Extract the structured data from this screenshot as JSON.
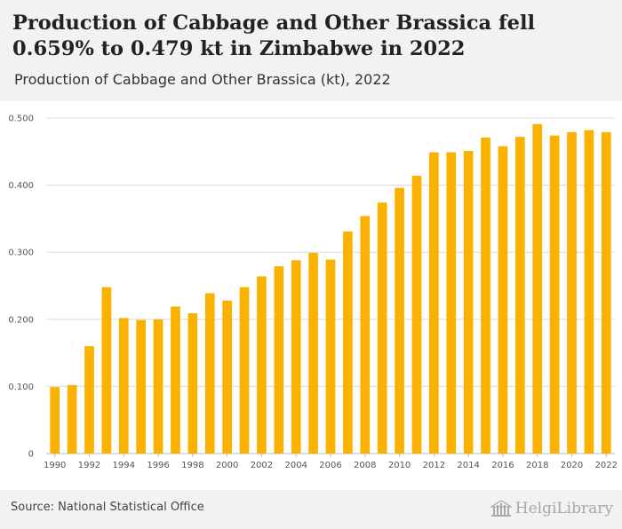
{
  "header": {
    "title": "Production of Cabbage and Other Brassica fell 0.659% to 0.479 kt in Zimbabwe in 2022",
    "subtitle": "Production of Cabbage and Other Brassica (kt), 2022"
  },
  "footer": {
    "source": "Source: National Statistical Office",
    "logo_text": "HelgiLibrary"
  },
  "colors": {
    "bar": "#fbb100",
    "grid": "#d9d9d9",
    "axis_text": "#555555"
  },
  "chart_data": {
    "type": "bar",
    "categories": [
      "1990",
      "1991",
      "1992",
      "1993",
      "1994",
      "1995",
      "1996",
      "1997",
      "1998",
      "1999",
      "2000",
      "2001",
      "2002",
      "2003",
      "2004",
      "2005",
      "2006",
      "2007",
      "2008",
      "2009",
      "2010",
      "2011",
      "2012",
      "2013",
      "2014",
      "2015",
      "2016",
      "2017",
      "2018",
      "2019",
      "2020",
      "2021",
      "2022"
    ],
    "values": [
      0.099,
      0.102,
      0.16,
      0.248,
      0.202,
      0.199,
      0.2,
      0.219,
      0.209,
      0.239,
      0.228,
      0.248,
      0.264,
      0.279,
      0.288,
      0.299,
      0.289,
      0.331,
      0.354,
      0.374,
      0.396,
      0.414,
      0.449,
      0.449,
      0.451,
      0.471,
      0.458,
      0.472,
      0.491,
      0.474,
      0.479,
      0.482,
      0.479
    ],
    "x_tick_labels": [
      "1990",
      "1992",
      "1994",
      "1996",
      "1998",
      "2000",
      "2002",
      "2004",
      "2006",
      "2008",
      "2010",
      "2012",
      "2014",
      "2016",
      "2018",
      "2020",
      "2022"
    ],
    "y_ticks": [
      0,
      0.1,
      0.2,
      0.3,
      0.4,
      0.5
    ],
    "y_tick_labels": [
      "0",
      "0.100",
      "0.200",
      "0.300",
      "0.400",
      "0.500"
    ],
    "ylim": [
      0,
      0.5
    ],
    "grid": true,
    "legend": "none"
  }
}
